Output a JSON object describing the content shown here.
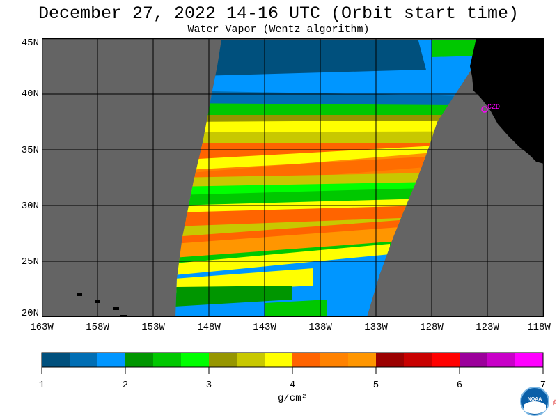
{
  "header": {
    "title": "December 27, 2022  14-16 UTC  (Orbit start time)",
    "subtitle": "Water Vapor (Wentz algorithm)"
  },
  "map": {
    "lat_labels": [
      "45N",
      "40N",
      "35N",
      "30N",
      "25N",
      "20N"
    ],
    "lon_labels": [
      "163W",
      "158W",
      "153W",
      "148W",
      "143W",
      "138W",
      "133W",
      "128W",
      "123W",
      "118W"
    ],
    "station_label": "CZD",
    "background_color": "#646464",
    "land_color": "#000000",
    "grid_color": "#000000",
    "station_color": "#ff00ff"
  },
  "colorbar": {
    "colors": [
      "#00507d",
      "#006eb4",
      "#0096ff",
      "#009600",
      "#00c800",
      "#00ff00",
      "#969600",
      "#c8c800",
      "#ffff00",
      "#ff6400",
      "#ff8200",
      "#ff9600",
      "#9b0000",
      "#c80000",
      "#ff0000",
      "#9b009b",
      "#c800c8",
      "#ff00ff"
    ],
    "tick_labels": [
      "1",
      "2",
      "3",
      "4",
      "5",
      "6",
      "7"
    ],
    "units": "g/cm²"
  },
  "logo": {
    "noaa_text": "NOAA",
    "psl_text": "PSL"
  }
}
